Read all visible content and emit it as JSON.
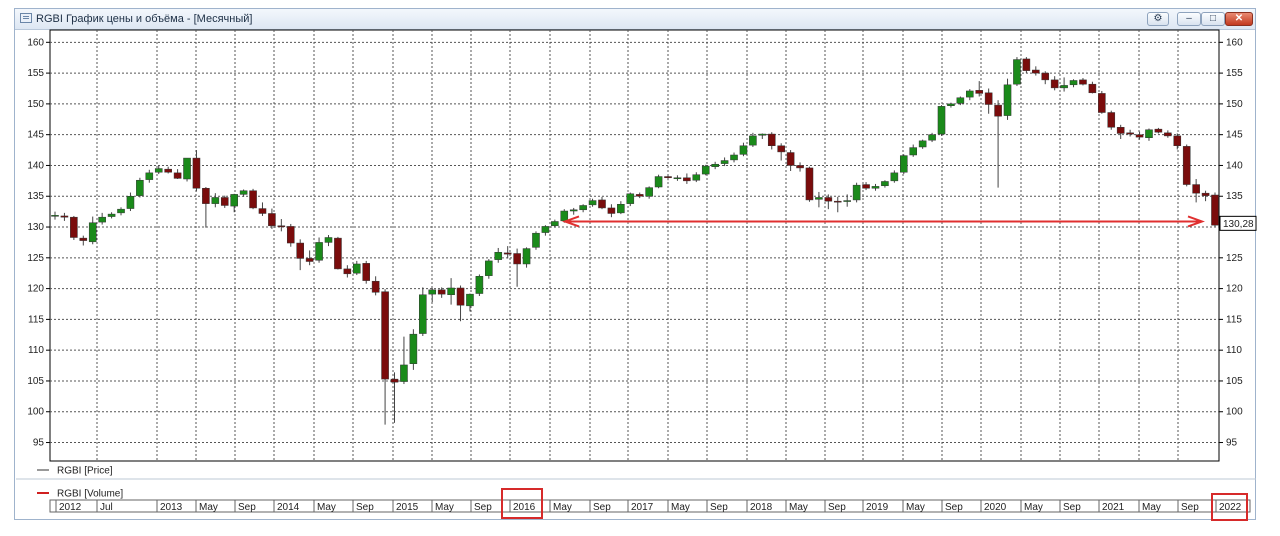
{
  "window": {
    "title": "RGBI График цены и объёма - [Месячный]",
    "buttons": {
      "tool": "⚙",
      "minimize": "–",
      "maximize": "□",
      "close": "✕"
    }
  },
  "chart_data": {
    "type": "candlestick",
    "y_ticks": [
      160,
      155,
      150,
      145,
      140,
      135,
      130,
      125,
      120,
      115,
      110,
      105,
      100,
      95
    ],
    "ylim": [
      92,
      162
    ],
    "grid": true,
    "last_price_label": "130,28",
    "legend": {
      "price": "RGBI [Price]",
      "volume": "RGBI [Volume]"
    },
    "x_labels": [
      "2012",
      "Jul",
      "2013",
      "May",
      "Sep",
      "2014",
      "May",
      "Sep",
      "2015",
      "May",
      "Sep",
      "2016",
      "May",
      "Sep",
      "2017",
      "May",
      "Sep",
      "2018",
      "May",
      "Sep",
      "2019",
      "May",
      "Sep",
      "2020",
      "May",
      "Sep",
      "2021",
      "May",
      "Sep",
      "2022"
    ],
    "colors": {
      "up": "#1a8a1a",
      "down": "#7a0c0c",
      "arrow": "#e03030",
      "grid": "#555555"
    },
    "candles": [
      {
        "o": 131.8,
        "h": 132.5,
        "l": 131.2,
        "c": 131.9
      },
      {
        "o": 131.8,
        "h": 132.3,
        "l": 131.0,
        "c": 131.6
      },
      {
        "o": 131.6,
        "h": 131.8,
        "l": 127.9,
        "c": 128.3
      },
      {
        "o": 128.2,
        "h": 128.6,
        "l": 127.0,
        "c": 127.8
      },
      {
        "o": 127.6,
        "h": 131.7,
        "l": 127.2,
        "c": 130.7
      },
      {
        "o": 130.8,
        "h": 132.3,
        "l": 130.4,
        "c": 131.6
      },
      {
        "o": 131.7,
        "h": 132.4,
        "l": 131.4,
        "c": 132.1
      },
      {
        "o": 132.3,
        "h": 133.2,
        "l": 131.9,
        "c": 132.9
      },
      {
        "o": 133.0,
        "h": 135.6,
        "l": 132.6,
        "c": 135.0
      },
      {
        "o": 135.1,
        "h": 138.0,
        "l": 134.8,
        "c": 137.6
      },
      {
        "o": 137.7,
        "h": 139.3,
        "l": 137.2,
        "c": 138.8
      },
      {
        "o": 138.9,
        "h": 140.0,
        "l": 138.6,
        "c": 139.5
      },
      {
        "o": 139.4,
        "h": 139.8,
        "l": 138.7,
        "c": 138.9
      },
      {
        "o": 138.8,
        "h": 139.4,
        "l": 137.8,
        "c": 137.9
      },
      {
        "o": 137.8,
        "h": 141.2,
        "l": 137.4,
        "c": 141.2
      },
      {
        "o": 141.2,
        "h": 142.5,
        "l": 135.8,
        "c": 136.3
      },
      {
        "o": 136.3,
        "h": 136.5,
        "l": 129.9,
        "c": 133.8
      },
      {
        "o": 133.8,
        "h": 135.5,
        "l": 133.2,
        "c": 134.8
      },
      {
        "o": 134.8,
        "h": 135.1,
        "l": 133.1,
        "c": 133.5
      },
      {
        "o": 133.4,
        "h": 135.4,
        "l": 132.4,
        "c": 135.3
      },
      {
        "o": 135.3,
        "h": 136.1,
        "l": 134.9,
        "c": 135.9
      },
      {
        "o": 135.9,
        "h": 136.2,
        "l": 132.9,
        "c": 133.1
      },
      {
        "o": 133.0,
        "h": 134.0,
        "l": 131.8,
        "c": 132.2
      },
      {
        "o": 132.2,
        "h": 133.0,
        "l": 129.7,
        "c": 130.2
      },
      {
        "o": 130.2,
        "h": 131.3,
        "l": 129.3,
        "c": 130.1
      },
      {
        "o": 130.1,
        "h": 130.5,
        "l": 126.8,
        "c": 127.4
      },
      {
        "o": 127.4,
        "h": 128.0,
        "l": 123.0,
        "c": 124.9
      },
      {
        "o": 124.9,
        "h": 126.2,
        "l": 123.8,
        "c": 124.4
      },
      {
        "o": 124.6,
        "h": 128.3,
        "l": 124.2,
        "c": 127.5
      },
      {
        "o": 127.5,
        "h": 128.7,
        "l": 126.9,
        "c": 128.3
      },
      {
        "o": 128.2,
        "h": 128.4,
        "l": 123.1,
        "c": 123.2
      },
      {
        "o": 123.2,
        "h": 123.8,
        "l": 121.8,
        "c": 122.4
      },
      {
        "o": 122.5,
        "h": 124.5,
        "l": 122.2,
        "c": 124.0
      },
      {
        "o": 124.1,
        "h": 124.5,
        "l": 120.8,
        "c": 121.3
      },
      {
        "o": 121.2,
        "h": 122.0,
        "l": 118.9,
        "c": 119.4
      },
      {
        "o": 119.5,
        "h": 119.9,
        "l": 97.9,
        "c": 105.3
      },
      {
        "o": 105.3,
        "h": 106.4,
        "l": 98.2,
        "c": 104.8
      },
      {
        "o": 104.9,
        "h": 112.2,
        "l": 104.5,
        "c": 107.6
      },
      {
        "o": 107.8,
        "h": 113.4,
        "l": 106.8,
        "c": 112.6
      },
      {
        "o": 112.7,
        "h": 120.2,
        "l": 112.3,
        "c": 119.0
      },
      {
        "o": 119.1,
        "h": 120.1,
        "l": 117.8,
        "c": 119.8
      },
      {
        "o": 119.8,
        "h": 120.2,
        "l": 118.5,
        "c": 119.1
      },
      {
        "o": 119.0,
        "h": 121.7,
        "l": 117.4,
        "c": 120.1
      },
      {
        "o": 120.1,
        "h": 120.5,
        "l": 114.7,
        "c": 117.3
      },
      {
        "o": 117.2,
        "h": 119.2,
        "l": 116.3,
        "c": 119.1
      },
      {
        "o": 119.2,
        "h": 122.3,
        "l": 118.8,
        "c": 122.0
      },
      {
        "o": 122.1,
        "h": 124.8,
        "l": 121.6,
        "c": 124.5
      },
      {
        "o": 124.7,
        "h": 126.6,
        "l": 124.2,
        "c": 125.9
      },
      {
        "o": 125.8,
        "h": 126.9,
        "l": 124.9,
        "c": 125.6
      },
      {
        "o": 125.7,
        "h": 126.5,
        "l": 120.3,
        "c": 124.0
      },
      {
        "o": 124.0,
        "h": 126.7,
        "l": 123.4,
        "c": 126.5
      },
      {
        "o": 126.7,
        "h": 129.3,
        "l": 126.3,
        "c": 129.0
      },
      {
        "o": 129.1,
        "h": 130.3,
        "l": 128.6,
        "c": 130.1
      },
      {
        "o": 130.2,
        "h": 131.2,
        "l": 129.9,
        "c": 130.9
      },
      {
        "o": 131.0,
        "h": 132.9,
        "l": 130.7,
        "c": 132.6
      },
      {
        "o": 132.6,
        "h": 133.1,
        "l": 132.0,
        "c": 132.8
      },
      {
        "o": 132.8,
        "h": 133.7,
        "l": 132.4,
        "c": 133.5
      },
      {
        "o": 133.6,
        "h": 134.6,
        "l": 133.3,
        "c": 134.3
      },
      {
        "o": 134.4,
        "h": 134.9,
        "l": 132.9,
        "c": 133.1
      },
      {
        "o": 133.1,
        "h": 133.7,
        "l": 131.6,
        "c": 132.2
      },
      {
        "o": 132.3,
        "h": 134.2,
        "l": 132.1,
        "c": 133.7
      },
      {
        "o": 133.8,
        "h": 135.6,
        "l": 133.4,
        "c": 135.4
      },
      {
        "o": 135.3,
        "h": 135.6,
        "l": 134.7,
        "c": 135.0
      },
      {
        "o": 135.0,
        "h": 136.6,
        "l": 134.6,
        "c": 136.4
      },
      {
        "o": 136.5,
        "h": 138.5,
        "l": 136.3,
        "c": 138.2
      },
      {
        "o": 138.2,
        "h": 138.5,
        "l": 137.6,
        "c": 138.0
      },
      {
        "o": 137.9,
        "h": 138.4,
        "l": 137.5,
        "c": 138.0
      },
      {
        "o": 138.0,
        "h": 138.7,
        "l": 137.0,
        "c": 137.5
      },
      {
        "o": 137.6,
        "h": 138.9,
        "l": 137.3,
        "c": 138.5
      },
      {
        "o": 138.6,
        "h": 140.1,
        "l": 138.4,
        "c": 139.9
      },
      {
        "o": 139.8,
        "h": 140.6,
        "l": 139.4,
        "c": 140.2
      },
      {
        "o": 140.3,
        "h": 141.3,
        "l": 139.9,
        "c": 140.8
      },
      {
        "o": 140.9,
        "h": 142.1,
        "l": 140.5,
        "c": 141.7
      },
      {
        "o": 141.8,
        "h": 143.7,
        "l": 141.5,
        "c": 143.2
      },
      {
        "o": 143.3,
        "h": 145.3,
        "l": 143.0,
        "c": 144.8
      },
      {
        "o": 144.9,
        "h": 145.2,
        "l": 144.3,
        "c": 145.1
      },
      {
        "o": 145.1,
        "h": 145.4,
        "l": 142.6,
        "c": 143.2
      },
      {
        "o": 143.2,
        "h": 143.6,
        "l": 140.8,
        "c": 142.2
      },
      {
        "o": 142.1,
        "h": 142.5,
        "l": 139.1,
        "c": 140.0
      },
      {
        "o": 140.0,
        "h": 140.5,
        "l": 139.0,
        "c": 139.6
      },
      {
        "o": 139.6,
        "h": 139.8,
        "l": 134.1,
        "c": 134.4
      },
      {
        "o": 134.5,
        "h": 135.7,
        "l": 133.2,
        "c": 134.8
      },
      {
        "o": 134.8,
        "h": 135.3,
        "l": 132.9,
        "c": 134.2
      },
      {
        "o": 134.2,
        "h": 134.9,
        "l": 132.4,
        "c": 134.1
      },
      {
        "o": 134.2,
        "h": 135.3,
        "l": 133.3,
        "c": 134.3
      },
      {
        "o": 134.4,
        "h": 137.2,
        "l": 134.0,
        "c": 136.8
      },
      {
        "o": 136.9,
        "h": 137.3,
        "l": 136.0,
        "c": 136.3
      },
      {
        "o": 136.3,
        "h": 137.0,
        "l": 135.9,
        "c": 136.6
      },
      {
        "o": 136.7,
        "h": 137.6,
        "l": 136.4,
        "c": 137.4
      },
      {
        "o": 137.5,
        "h": 139.2,
        "l": 137.2,
        "c": 138.8
      },
      {
        "o": 138.9,
        "h": 141.8,
        "l": 138.6,
        "c": 141.6
      },
      {
        "o": 141.7,
        "h": 143.4,
        "l": 141.4,
        "c": 142.9
      },
      {
        "o": 143.0,
        "h": 144.2,
        "l": 142.7,
        "c": 144.0
      },
      {
        "o": 144.1,
        "h": 145.3,
        "l": 143.8,
        "c": 145.0
      },
      {
        "o": 145.1,
        "h": 149.8,
        "l": 144.8,
        "c": 149.6
      },
      {
        "o": 149.7,
        "h": 150.2,
        "l": 149.4,
        "c": 150.0
      },
      {
        "o": 150.1,
        "h": 151.2,
        "l": 149.8,
        "c": 151.0
      },
      {
        "o": 151.1,
        "h": 152.4,
        "l": 150.6,
        "c": 152.1
      },
      {
        "o": 152.2,
        "h": 153.7,
        "l": 151.2,
        "c": 151.7
      },
      {
        "o": 151.8,
        "h": 152.5,
        "l": 148.4,
        "c": 149.9
      },
      {
        "o": 149.8,
        "h": 150.6,
        "l": 136.4,
        "c": 148.0
      },
      {
        "o": 148.1,
        "h": 154.1,
        "l": 147.4,
        "c": 153.1
      },
      {
        "o": 153.2,
        "h": 157.6,
        "l": 152.9,
        "c": 157.2
      },
      {
        "o": 157.3,
        "h": 157.6,
        "l": 155.0,
        "c": 155.4
      },
      {
        "o": 155.5,
        "h": 156.1,
        "l": 154.6,
        "c": 155.0
      },
      {
        "o": 155.0,
        "h": 155.3,
        "l": 153.2,
        "c": 153.9
      },
      {
        "o": 153.9,
        "h": 154.5,
        "l": 152.2,
        "c": 152.6
      },
      {
        "o": 152.6,
        "h": 154.3,
        "l": 152.0,
        "c": 153.0
      },
      {
        "o": 153.1,
        "h": 154.0,
        "l": 152.7,
        "c": 153.8
      },
      {
        "o": 153.9,
        "h": 154.2,
        "l": 153.0,
        "c": 153.2
      },
      {
        "o": 153.2,
        "h": 153.6,
        "l": 151.7,
        "c": 151.8
      },
      {
        "o": 151.7,
        "h": 152.1,
        "l": 148.4,
        "c": 148.6
      },
      {
        "o": 148.6,
        "h": 148.9,
        "l": 145.8,
        "c": 146.2
      },
      {
        "o": 146.2,
        "h": 146.6,
        "l": 144.3,
        "c": 145.2
      },
      {
        "o": 145.3,
        "h": 145.8,
        "l": 144.7,
        "c": 145.1
      },
      {
        "o": 145.0,
        "h": 145.5,
        "l": 144.2,
        "c": 144.6
      },
      {
        "o": 144.5,
        "h": 146.0,
        "l": 144.0,
        "c": 145.8
      },
      {
        "o": 145.9,
        "h": 146.1,
        "l": 145.2,
        "c": 145.4
      },
      {
        "o": 145.3,
        "h": 145.7,
        "l": 144.5,
        "c": 144.8
      },
      {
        "o": 144.8,
        "h": 145.2,
        "l": 142.6,
        "c": 143.2
      },
      {
        "o": 143.1,
        "h": 143.4,
        "l": 136.6,
        "c": 136.9
      },
      {
        "o": 136.9,
        "h": 137.8,
        "l": 134.0,
        "c": 135.5
      },
      {
        "o": 135.5,
        "h": 135.9,
        "l": 134.2,
        "c": 135.1
      },
      {
        "o": 135.2,
        "h": 135.6,
        "l": 130.1,
        "c": 130.3
      }
    ]
  }
}
